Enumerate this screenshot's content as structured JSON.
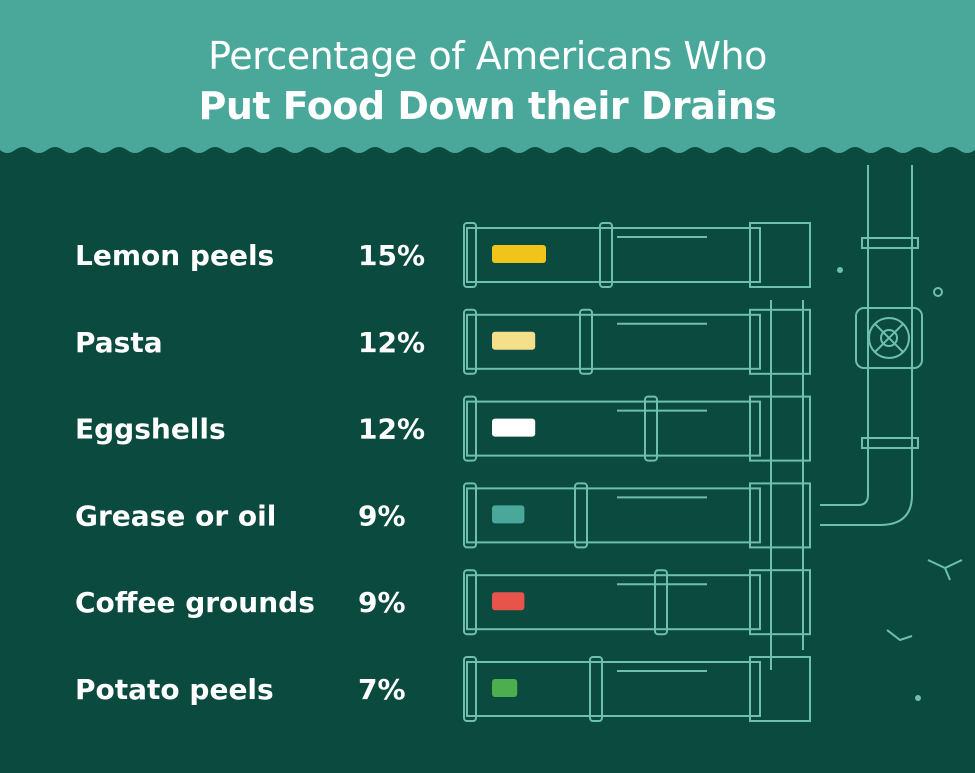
{
  "header": {
    "title_line1": "Percentage of Americans Who",
    "title_line2": "Put Food Down their Drains"
  },
  "colors": {
    "background": "#0b4a3e",
    "header": "#49a89a",
    "pipe_line": "#6fbfae",
    "text": "#ffffff"
  },
  "chart_data": {
    "type": "bar",
    "title": "Percentage of Americans Who Put Food Down their Drains",
    "xlabel": "",
    "ylabel": "",
    "unit": "%",
    "categories": [
      "Lemon peels",
      "Pasta",
      "Eggshells",
      "Grease or oil",
      "Coffee grounds",
      "Potato peels"
    ],
    "values": [
      15,
      12,
      12,
      9,
      9,
      7
    ],
    "value_labels": [
      "15%",
      "12%",
      "12%",
      "9%",
      "9%",
      "7%"
    ],
    "bar_colors": [
      "#f0c419",
      "#f6df8a",
      "#ffffff",
      "#49a89a",
      "#e8534a",
      "#4cae4f"
    ],
    "grid": false,
    "legend": "none"
  }
}
